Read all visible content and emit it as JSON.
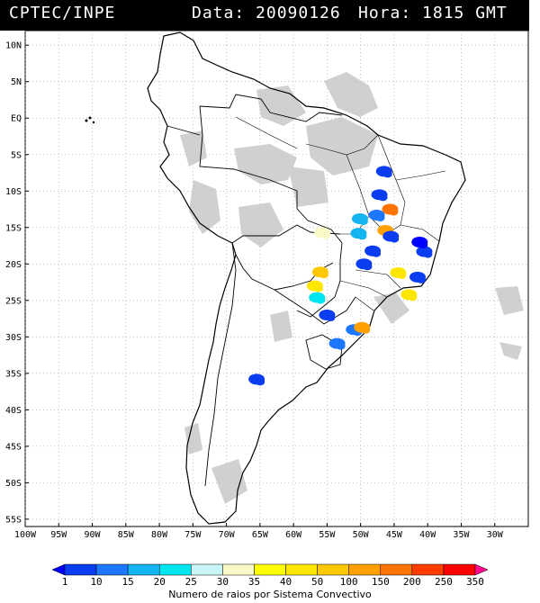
{
  "header": {
    "agency": "CPTEC/INPE",
    "date_text": "Data: 20090126",
    "time_text": "Hora: 1815 GMT"
  },
  "map": {
    "lon_range": [
      -100,
      -25
    ],
    "lat_range": [
      -56,
      12
    ],
    "lat_ticks": [
      {
        "v": 10,
        "t": "10N"
      },
      {
        "v": 5,
        "t": "5N"
      },
      {
        "v": 0,
        "t": "EQ"
      },
      {
        "v": -5,
        "t": "5S"
      },
      {
        "v": -10,
        "t": "10S"
      },
      {
        "v": -15,
        "t": "15S"
      },
      {
        "v": -20,
        "t": "20S"
      },
      {
        "v": -25,
        "t": "25S"
      },
      {
        "v": -30,
        "t": "30S"
      },
      {
        "v": -35,
        "t": "35S"
      },
      {
        "v": -40,
        "t": "40S"
      },
      {
        "v": -45,
        "t": "45S"
      },
      {
        "v": -50,
        "t": "50S"
      },
      {
        "v": -55,
        "t": "55S"
      }
    ],
    "lon_ticks": [
      {
        "v": -100,
        "t": "100W"
      },
      {
        "v": -95,
        "t": "95W"
      },
      {
        "v": -90,
        "t": "90W"
      },
      {
        "v": -85,
        "t": "85W"
      },
      {
        "v": -80,
        "t": "80W"
      },
      {
        "v": -75,
        "t": "75W"
      },
      {
        "v": -70,
        "t": "70W"
      },
      {
        "v": -65,
        "t": "65W"
      },
      {
        "v": -60,
        "t": "60W"
      },
      {
        "v": -55,
        "t": "55W"
      },
      {
        "v": -50,
        "t": "50W"
      },
      {
        "v": -45,
        "t": "45W"
      },
      {
        "v": -40,
        "t": "40W"
      },
      {
        "v": -35,
        "t": "35W"
      },
      {
        "v": -30,
        "t": "30W"
      }
    ]
  },
  "legend": {
    "title": "Numero de raios por Sistema Convectivo",
    "labels": [
      "1",
      "10",
      "15",
      "20",
      "25",
      "30",
      "35",
      "40",
      "50",
      "100",
      "150",
      "200",
      "250",
      "350"
    ],
    "colors": [
      "#0000ff",
      "#0a3cf0",
      "#1e78ff",
      "#14b4f0",
      "#00e6f0",
      "#c8f5f5",
      "#fafac8",
      "#ffff00",
      "#ffe600",
      "#ffc800",
      "#ffa000",
      "#ff7300",
      "#ff3c00",
      "#ff0000",
      "#ff0a8c"
    ]
  },
  "storms": [
    {
      "lon": -46.5,
      "lat": -7.3,
      "color": "#0a3cf0"
    },
    {
      "lon": -47.2,
      "lat": -10.5,
      "color": "#0a3cf0"
    },
    {
      "lon": -47.6,
      "lat": -13.3,
      "color": "#1e78ff"
    },
    {
      "lon": -45.6,
      "lat": -12.5,
      "color": "#ff7300"
    },
    {
      "lon": -46.3,
      "lat": -15.4,
      "color": "#ffa000"
    },
    {
      "lon": -50.1,
      "lat": -13.8,
      "color": "#14b4f0"
    },
    {
      "lon": -50.3,
      "lat": -15.8,
      "color": "#14b4f0"
    },
    {
      "lon": -55.7,
      "lat": -15.7,
      "color": "#fafac8"
    },
    {
      "lon": -45.5,
      "lat": -16.2,
      "color": "#0a3cf0"
    },
    {
      "lon": -40.5,
      "lat": -18.3,
      "color": "#0a3cf0"
    },
    {
      "lon": -41.2,
      "lat": -17.0,
      "color": "#0000ff"
    },
    {
      "lon": -48.2,
      "lat": -18.2,
      "color": "#0a3cf0"
    },
    {
      "lon": -49.5,
      "lat": -20.0,
      "color": "#0a3cf0"
    },
    {
      "lon": -44.4,
      "lat": -21.2,
      "color": "#ffe600"
    },
    {
      "lon": -42.8,
      "lat": -24.2,
      "color": "#ffe600"
    },
    {
      "lon": -41.5,
      "lat": -21.8,
      "color": "#0a3cf0"
    },
    {
      "lon": -56.0,
      "lat": -21.1,
      "color": "#ffc800"
    },
    {
      "lon": -56.8,
      "lat": -23.0,
      "color": "#ffe600"
    },
    {
      "lon": -56.5,
      "lat": -24.6,
      "color": "#00e6f0"
    },
    {
      "lon": -55.0,
      "lat": -27.0,
      "color": "#0a3cf0"
    },
    {
      "lon": -51.0,
      "lat": -29.0,
      "color": "#1e78ff"
    },
    {
      "lon": -49.8,
      "lat": -28.7,
      "color": "#ffa000"
    },
    {
      "lon": -53.5,
      "lat": -30.9,
      "color": "#1e78ff"
    },
    {
      "lon": -65.5,
      "lat": -35.8,
      "color": "#0a3cf0"
    }
  ]
}
